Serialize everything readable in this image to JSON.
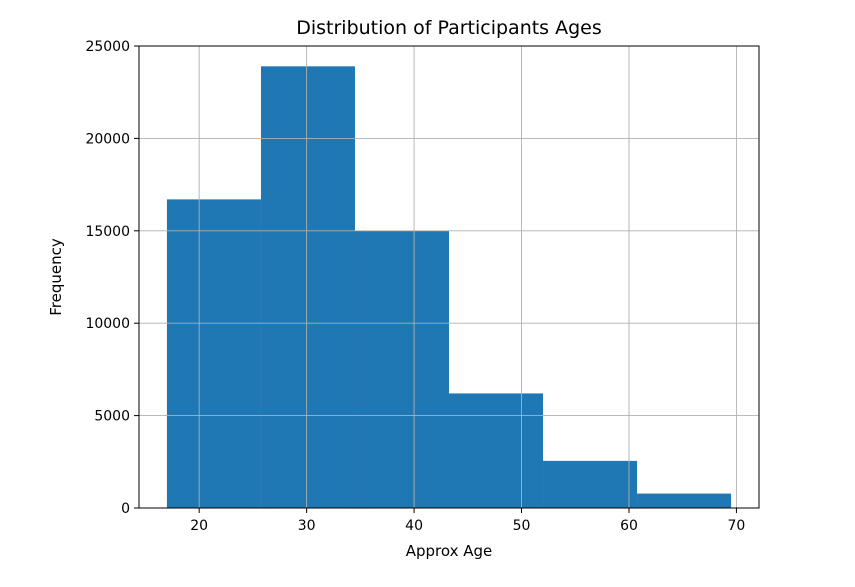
{
  "chart_data": {
    "type": "bar",
    "title": "Distribution of Participants Ages",
    "xlabel": "Approx Age",
    "ylabel": "Frequency",
    "bins": [
      {
        "start": 17.0,
        "end": 25.75,
        "count": 16700
      },
      {
        "start": 25.75,
        "end": 34.5,
        "count": 23900
      },
      {
        "start": 34.5,
        "end": 43.25,
        "count": 15000
      },
      {
        "start": 43.25,
        "end": 52.0,
        "count": 6200
      },
      {
        "start": 52.0,
        "end": 60.75,
        "count": 2550
      },
      {
        "start": 60.75,
        "end": 69.5,
        "count": 780
      }
    ],
    "xlim": [
      14.4,
      72.1
    ],
    "ylim": [
      0,
      25000
    ],
    "x_ticks": [
      20,
      30,
      40,
      50,
      60,
      70
    ],
    "y_ticks": [
      0,
      5000,
      10000,
      15000,
      20000,
      25000
    ],
    "bar_color": "#1f77b4",
    "grid": true
  }
}
